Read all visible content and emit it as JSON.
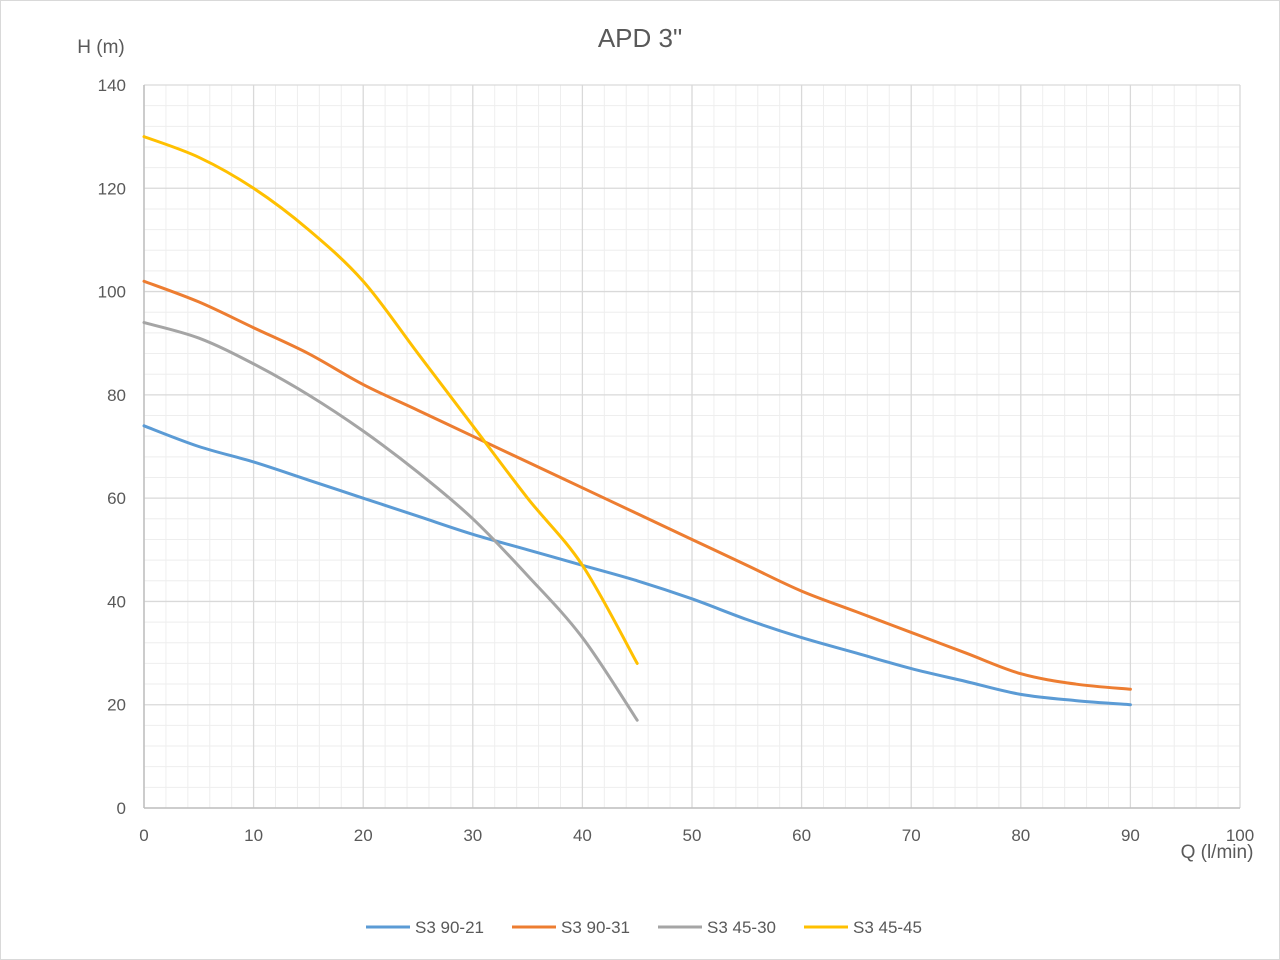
{
  "chart_data": {
    "type": "line",
    "title": "APD 3\"",
    "xlabel": "Q (l/min)",
    "ylabel": "H (m)",
    "xlim": [
      0,
      100
    ],
    "ylim": [
      0,
      140
    ],
    "x_ticks": [
      0,
      10,
      20,
      30,
      40,
      50,
      60,
      70,
      80,
      90,
      100
    ],
    "y_ticks": [
      0,
      20,
      40,
      60,
      80,
      100,
      120,
      140
    ],
    "grid": true,
    "minor_grid": true,
    "legend_position": "bottom",
    "series": [
      {
        "name": "S3 90-21",
        "color": "#5b9bd5",
        "x": [
          0,
          5,
          10,
          15,
          20,
          25,
          30,
          35,
          40,
          45,
          50,
          55,
          60,
          65,
          70,
          75,
          80,
          85,
          90
        ],
        "y": [
          74,
          70,
          67,
          63.5,
          60,
          56.5,
          53,
          50,
          47,
          44,
          40.5,
          36.5,
          33,
          30,
          27,
          24.5,
          22,
          20.8,
          20
        ]
      },
      {
        "name": "S3 90-31",
        "color": "#ed7d31",
        "x": [
          0,
          5,
          10,
          15,
          20,
          25,
          30,
          35,
          40,
          45,
          50,
          55,
          60,
          65,
          70,
          75,
          80,
          85,
          90
        ],
        "y": [
          102,
          98,
          93,
          88,
          82,
          77,
          72,
          67,
          62,
          57,
          52,
          47,
          42,
          38,
          34,
          30,
          26,
          24,
          23
        ]
      },
      {
        "name": "S3 45-30",
        "color": "#a5a5a5",
        "x": [
          0,
          5,
          10,
          15,
          20,
          25,
          30,
          35,
          40,
          45
        ],
        "y": [
          94,
          91,
          86,
          80,
          73,
          65,
          56,
          45,
          33,
          17
        ]
      },
      {
        "name": "S3 45-45",
        "color": "#ffc000",
        "x": [
          0,
          5,
          10,
          15,
          20,
          25,
          30,
          35,
          40,
          45
        ],
        "y": [
          130,
          126,
          120,
          112,
          102,
          88,
          74,
          60,
          47,
          28
        ]
      }
    ]
  }
}
